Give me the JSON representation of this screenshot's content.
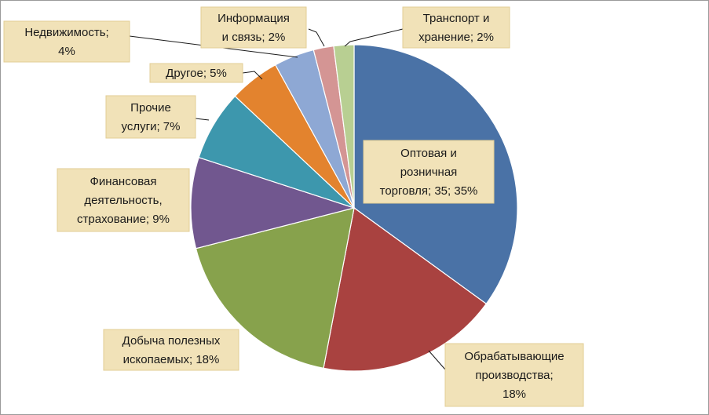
{
  "chart_data": {
    "type": "pie",
    "title": "",
    "slices": [
      {
        "name": "Оптовая и розничная торговля",
        "value": 35,
        "color": "#4a72a6",
        "label_lines": [
          "Оптовая и",
          "розничная",
          "торговля; 35; 35%"
        ]
      },
      {
        "name": "Обрабатывающие производства",
        "value": 18,
        "color": "#a94240",
        "label_lines": [
          "Обрабатывающие",
          "производства;",
          "18%"
        ]
      },
      {
        "name": "Добыча полезных ископаемых",
        "value": 18,
        "color": "#87a24c",
        "label_lines": [
          "Добыча полезных",
          "ископаемых;  18%"
        ]
      },
      {
        "name": "Финансовая деятельность, страхование",
        "value": 9,
        "color": "#71578f",
        "label_lines": [
          "Финансовая",
          "деятельность,",
          "страхование;  9%"
        ]
      },
      {
        "name": "Прочие услуги",
        "value": 7,
        "color": "#3d97ad",
        "label_lines": [
          "Прочие",
          "услуги;  7%"
        ]
      },
      {
        "name": "Другое",
        "value": 5,
        "color": "#e3832e",
        "label_lines": [
          "Другое;  5%"
        ]
      },
      {
        "name": "Недвижимость",
        "value": 4,
        "color": "#8ea8d4",
        "label_lines": [
          "Недвижимость;",
          "4%"
        ]
      },
      {
        "name": "Информация и связь",
        "value": 2,
        "color": "#d49594",
        "label_lines": [
          "Информация",
          "и связь; 2%"
        ]
      },
      {
        "name": "Транспорт и хранение",
        "value": 2,
        "color": "#b8cf92",
        "label_lines": [
          "Транспорт и",
          "хранение; 2%"
        ]
      }
    ]
  }
}
